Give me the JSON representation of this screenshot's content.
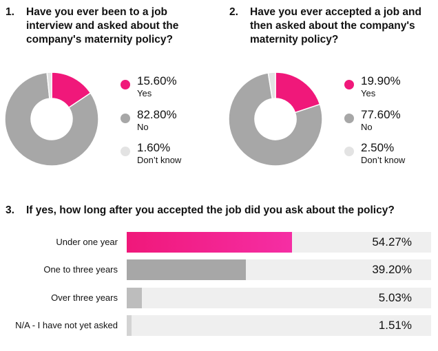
{
  "colors": {
    "yes": "#f0187a",
    "no": "#a7a7a7",
    "dontknow": "#e3e3e3"
  },
  "chart_data": [
    {
      "type": "pie",
      "number": "1.",
      "title_lines": [
        "Have you ever been to a job",
        "interview and asked about the",
        "company's maternity policy?"
      ],
      "slices": [
        {
          "value_label": "15.60%",
          "label": "Yes",
          "value": 15.6,
          "color": "#f0187a"
        },
        {
          "value_label": "82.80%",
          "label": "No",
          "value": 82.8,
          "color": "#a7a7a7"
        },
        {
          "value_label": "1.60%",
          "label": "Don’t know",
          "value": 1.6,
          "color": "#e3e3e3"
        }
      ]
    },
    {
      "type": "pie",
      "number": "2.",
      "title_lines": [
        "Have you ever accepted a job and",
        "then asked about the company's",
        "maternity policy?"
      ],
      "slices": [
        {
          "value_label": "19.90%",
          "label": "Yes",
          "value": 19.9,
          "color": "#f0187a"
        },
        {
          "value_label": "77.60%",
          "label": "No",
          "value": 77.6,
          "color": "#a7a7a7"
        },
        {
          "value_label": "2.50%",
          "label": "Don’t know",
          "value": 2.5,
          "color": "#e3e3e3"
        }
      ]
    },
    {
      "type": "bar",
      "orientation": "horizontal",
      "number": "3.",
      "title": "If yes, how long after you accepted the job did you ask about the policy?",
      "xlim": [
        0,
        100
      ],
      "bars": [
        {
          "category": "Under one year",
          "value": 54.27,
          "value_label": "54.27%",
          "color": "#f0187a"
        },
        {
          "category": "One to three years",
          "value": 39.2,
          "value_label": "39.20%",
          "color": "#a7a7a7"
        },
        {
          "category": "Over three years",
          "value": 5.03,
          "value_label": "5.03%",
          "color": "#bdbdbd"
        },
        {
          "category": "N/A - I have not yet asked",
          "value": 1.51,
          "value_label": "1.51%",
          "color": "#d3d3d3"
        }
      ]
    }
  ]
}
